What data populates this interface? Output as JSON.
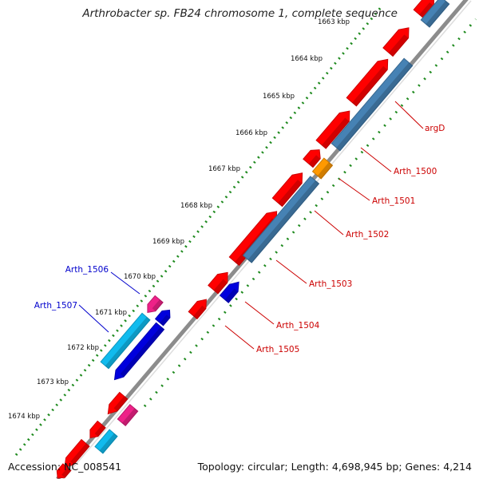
{
  "title": "Arthrobacter sp. FB24 chromosome 1, complete sequence",
  "footer": {
    "accession": "Accession: NC_008541",
    "summary": "Topology: circular; Length: 4,698,945 bp; Genes: 4,214"
  },
  "colors": {
    "backbone": "#8c8c8c",
    "tick": "#1e8a1e",
    "cds_red": "#ff0000",
    "cds_blue_forward": "#4682b4",
    "cds_orange": "#ff9900",
    "reverse_pink": "#ee2288",
    "reverse_cyan": "#11bbee",
    "reverse_navy": "#0000dd",
    "label_forward": "#cc0000",
    "label_reverse": "#0000cc"
  },
  "ruler": [
    {
      "label": "1663 kbp"
    },
    {
      "label": "1664 kbp"
    },
    {
      "label": "1665 kbp"
    },
    {
      "label": "1666 kbp"
    },
    {
      "label": "1667 kbp"
    },
    {
      "label": "1668 kbp"
    },
    {
      "label": "1669 kbp"
    },
    {
      "label": "1670 kbp"
    },
    {
      "label": "1671 kbp"
    },
    {
      "label": "1672 kbp"
    },
    {
      "label": "1673 kbp"
    },
    {
      "label": "1674 kbp"
    }
  ],
  "gene_labels": [
    {
      "label": "argD",
      "strand": "forward"
    },
    {
      "label": "Arth_1500",
      "strand": "forward"
    },
    {
      "label": "Arth_1501",
      "strand": "forward"
    },
    {
      "label": "Arth_1502",
      "strand": "forward"
    },
    {
      "label": "Arth_1503",
      "strand": "forward"
    },
    {
      "label": "Arth_1504",
      "strand": "forward"
    },
    {
      "label": "Arth_1505",
      "strand": "forward"
    },
    {
      "label": "Arth_1506",
      "strand": "reverse"
    },
    {
      "label": "Arth_1507",
      "strand": "reverse"
    }
  ]
}
